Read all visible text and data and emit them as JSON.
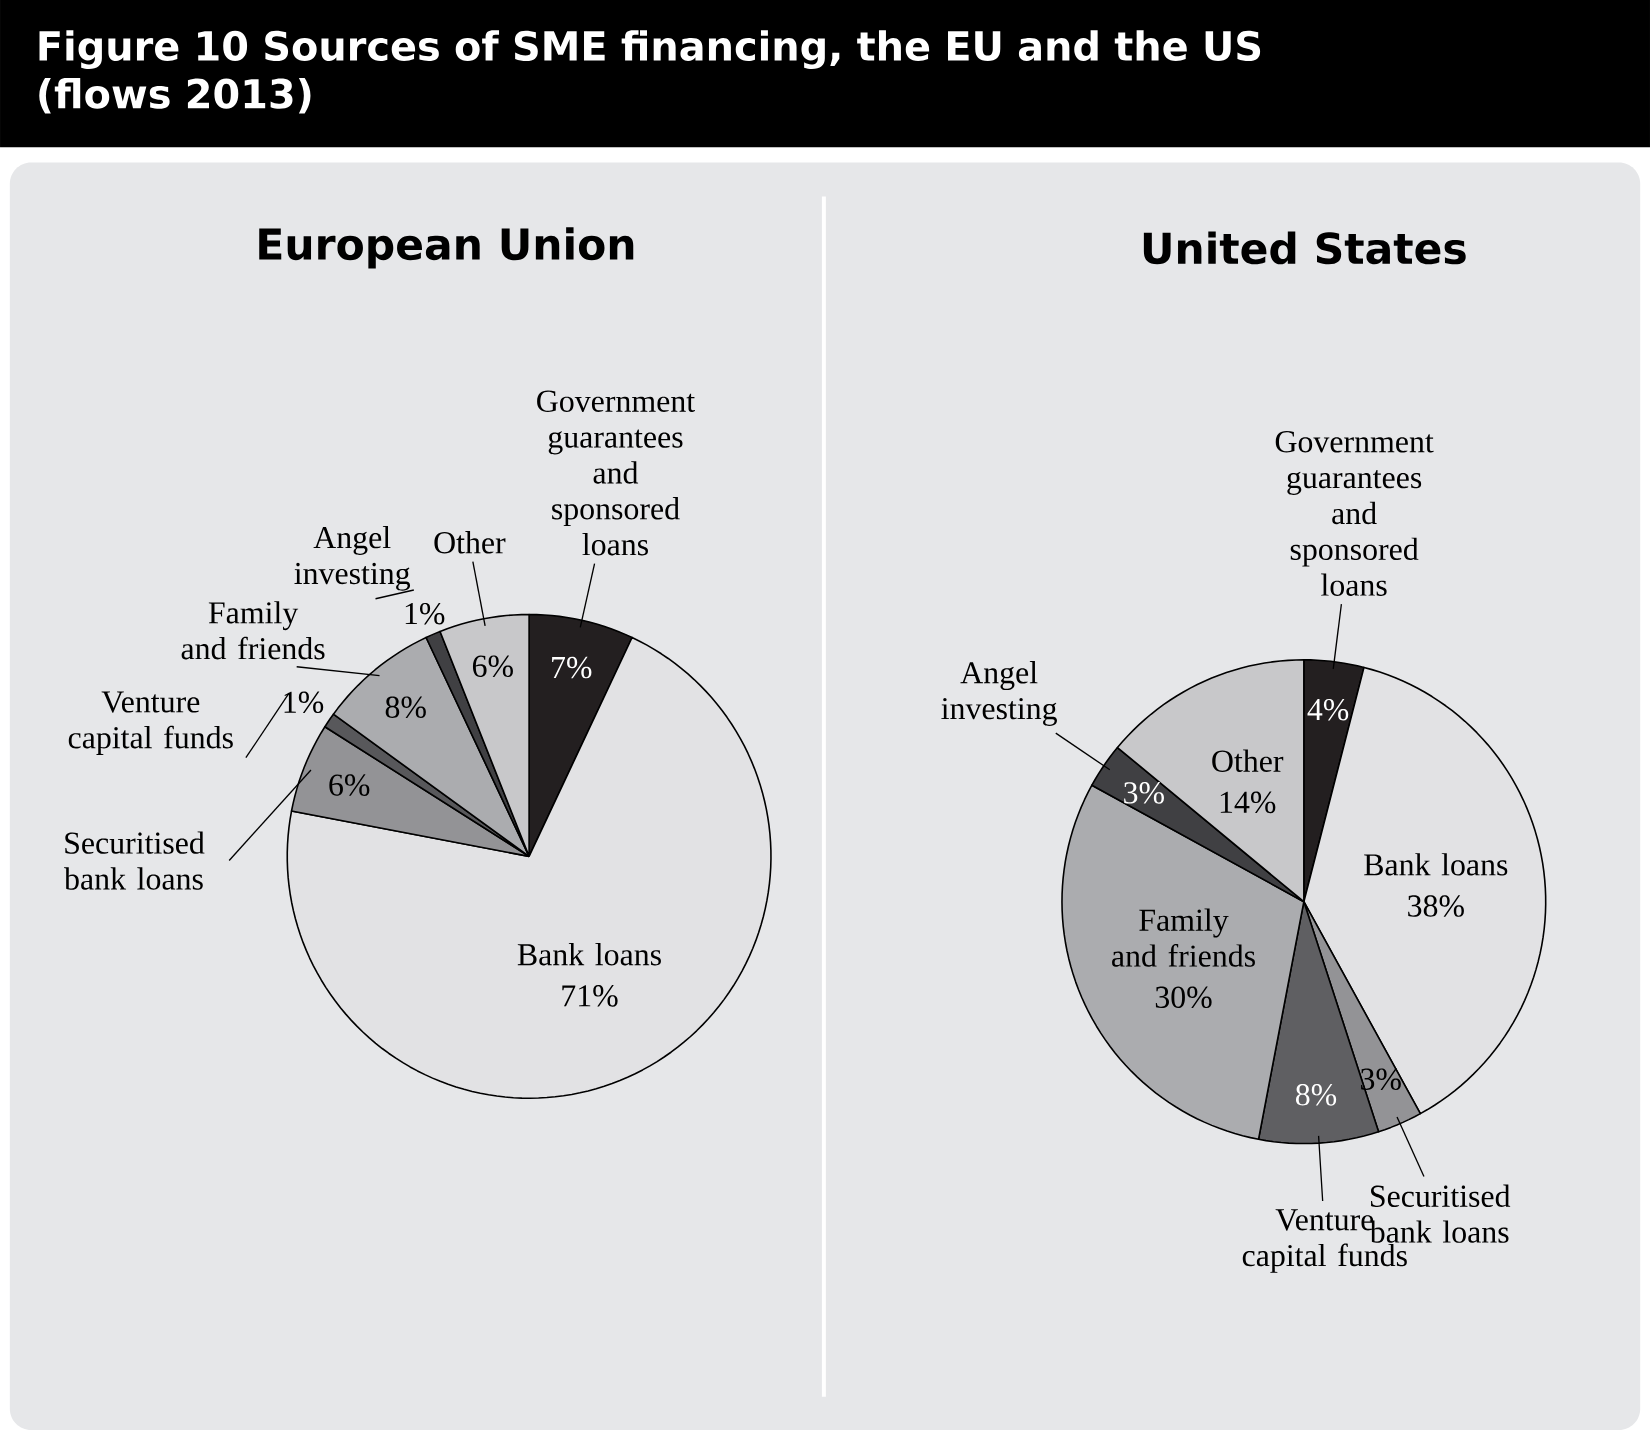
{
  "chart_data": [
    {
      "type": "pie",
      "title": "Figure 10  Sources of SME financing, the EU and the US (flows 2013)",
      "subtitle": "European Union",
      "categories": [
        "Government guarantees and sponsored loans",
        "Bank loans",
        "Securitised bank loans",
        "Venture capital funds",
        "Family and friends",
        "Angel investing",
        "Other"
      ],
      "values": [
        7,
        71,
        6,
        1,
        8,
        1,
        6
      ],
      "value_labels": [
        "7%",
        "71%",
        "6%",
        "1%",
        "8%",
        "1%",
        "6%"
      ],
      "colors": [
        "#231f20",
        "#e2e2e4",
        "#939396",
        "#58585b",
        "#abacaf",
        "#404043",
        "#c8c8ca"
      ]
    },
    {
      "type": "pie",
      "title": "United States",
      "categories": [
        "Government guarantees and sponsored loans",
        "Bank loans",
        "Securitised bank loans",
        "Venture capital funds",
        "Family and friends",
        "Angel investing",
        "Other"
      ],
      "values": [
        4,
        38,
        3,
        8,
        30,
        3,
        14
      ],
      "value_labels": [
        "4%",
        "38%",
        "3%",
        "8%",
        "30%",
        "3%",
        "14%"
      ],
      "colors": [
        "#231f20",
        "#e2e2e4",
        "#939396",
        "#5f5f62",
        "#abacaf",
        "#404043",
        "#c8c8ca"
      ]
    }
  ]
}
